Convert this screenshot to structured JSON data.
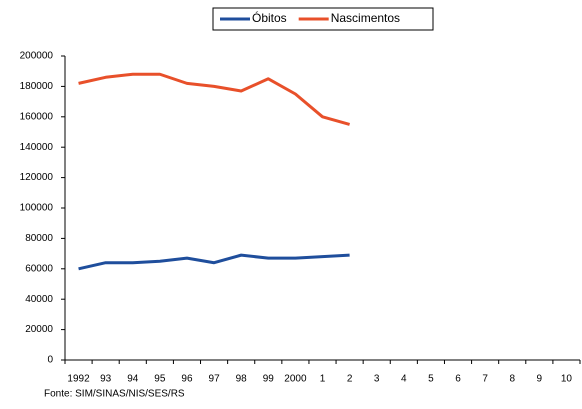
{
  "chart_data": {
    "type": "line",
    "categories": [
      "1992",
      "93",
      "94",
      "95",
      "96",
      "97",
      "98",
      "99",
      "2000",
      "1",
      "2",
      "3",
      "4",
      "5",
      "6",
      "7",
      "8",
      "9",
      "10"
    ],
    "series": [
      {
        "name": "Óbitos",
        "color": "#1f4e9c",
        "values": [
          60000,
          64000,
          64000,
          65000,
          67000,
          64000,
          69000,
          67000,
          67000,
          68000,
          69000,
          null,
          null,
          null,
          null,
          null,
          null,
          null,
          null
        ]
      },
      {
        "name": "Nascimentos",
        "color": "#e8502a",
        "values": [
          182000,
          186000,
          188000,
          188000,
          182000,
          180000,
          177000,
          185000,
          175000,
          160000,
          155000,
          null,
          null,
          null,
          null,
          null,
          null,
          null,
          null
        ]
      }
    ],
    "ylim": [
      0,
      200000
    ],
    "yticks": [
      0,
      20000,
      40000,
      60000,
      80000,
      100000,
      120000,
      140000,
      160000,
      180000,
      200000
    ],
    "source": "Fonte: SIM/SINAS/NIS/SES/RS"
  }
}
